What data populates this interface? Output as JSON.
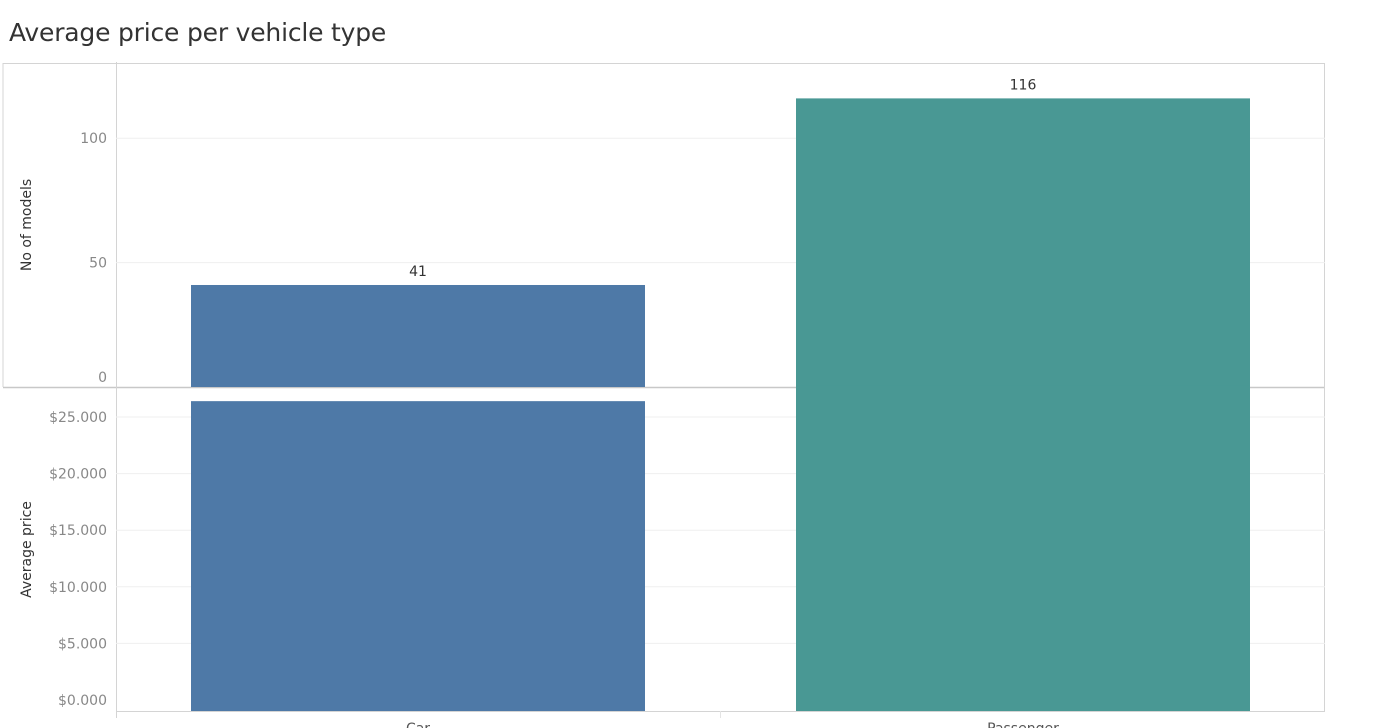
{
  "title": "Average price per vehicle type",
  "chart_data": [
    {
      "type": "bar",
      "categories": [
        "Car",
        "Passenger"
      ],
      "values": [
        41,
        116
      ],
      "ylabel": "No of models",
      "yticks": [
        "0",
        "50",
        "100"
      ],
      "ylim": [
        0,
        131
      ],
      "data_labels": [
        "41",
        "116"
      ],
      "colors": [
        "#4e79a7",
        "#499894"
      ],
      "grid": true
    },
    {
      "type": "bar",
      "categories": [
        "Car",
        "Passenger"
      ],
      "values": [
        26400,
        27800
      ],
      "ylabel": "Average price",
      "yticks": [
        "$0.000",
        "$5.000",
        "$10.000",
        "$15.000",
        "$20.000",
        "$25.000"
      ],
      "ylim": [
        0,
        29000
      ],
      "colors": [
        "#4e79a7",
        "#499894"
      ],
      "grid": true
    }
  ]
}
